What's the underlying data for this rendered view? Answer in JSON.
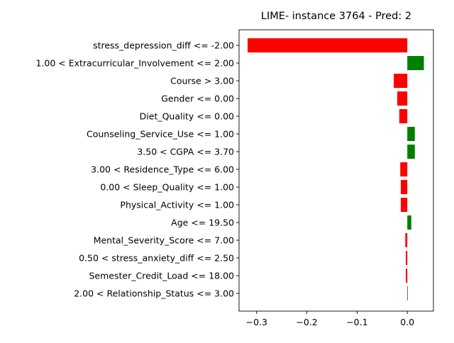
{
  "chart_data": {
    "type": "bar",
    "orientation": "horizontal",
    "title": "LIME- instance 3764 - Pred: 2",
    "xlabel": "",
    "ylabel": "",
    "xlim": [
      -0.335,
      0.052
    ],
    "xticks": [
      -0.3,
      -0.2,
      -0.1,
      0.0
    ],
    "xtick_labels": [
      "−0.3",
      "−0.2",
      "−0.1",
      "0.0"
    ],
    "grid": false,
    "legend": "none",
    "colors": {
      "positive": "#008000",
      "negative": "#ff0000"
    },
    "categories": [
      "stress_depression_diff <= -2.00",
      "1.00 < Extracurricular_Involvement <= 2.00",
      "Course > 3.00",
      "Gender <= 0.00",
      "Diet_Quality <= 0.00",
      "Counseling_Service_Use <= 1.00",
      "3.50 < CGPA <= 3.70",
      "3.00 < Residence_Type <= 6.00",
      "0.00 < Sleep_Quality <= 1.00",
      "Physical_Activity <= 1.00",
      "Age <= 19.50",
      "Mental_Severity_Score <= 7.00",
      "0.50 < stress_anxiety_diff <= 2.50",
      "Semester_Credit_Load <= 18.00",
      "2.00 < Relationship_Status <= 3.00"
    ],
    "values": [
      -0.318,
      0.033,
      -0.027,
      -0.02,
      -0.016,
      0.015,
      0.015,
      -0.014,
      -0.013,
      -0.013,
      0.008,
      -0.004,
      -0.003,
      -0.003,
      0.001
    ]
  }
}
